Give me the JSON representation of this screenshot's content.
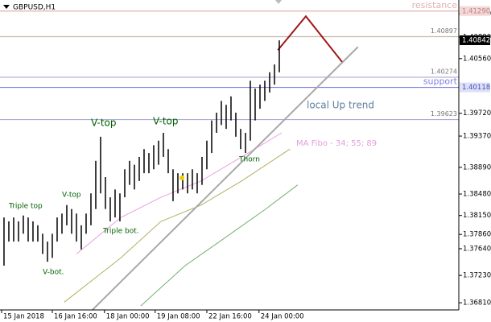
{
  "chart_data": {
    "type": "ohlc",
    "title": "GBPUSD,H1",
    "xlim": [
      -0.83,
      94.17
    ],
    "ylim": [
      1.367,
      1.4146
    ],
    "yticks": [
      {
        "value": 1.4125,
        "label": "1.41250"
      },
      {
        "value": 1.4089,
        "label": "1.40890"
      },
      {
        "value": 1.4056,
        "label": "1.40560"
      },
      {
        "value": 1.3972,
        "label": "1.39720"
      },
      {
        "value": 1.3937,
        "label": "1.39370"
      },
      {
        "value": 1.3889,
        "label": "1.38890"
      },
      {
        "value": 1.3848,
        "label": "1.38480"
      },
      {
        "value": 1.3815,
        "label": "1.38150"
      },
      {
        "value": 1.3786,
        "label": "1.37860"
      },
      {
        "value": 1.3764,
        "label": "1.37640"
      },
      {
        "value": 1.3723,
        "label": "1.37230"
      },
      {
        "value": 1.3681,
        "label": "1.36810"
      }
    ],
    "xticks": [
      {
        "value": -0.5,
        "label": "15 Jan 2018"
      },
      {
        "value": 10,
        "label": "16 Jan 16:00"
      },
      {
        "value": 20.8,
        "label": "18 Jan 00:00"
      },
      {
        "value": 31.3,
        "label": "19 Jan 08:00"
      },
      {
        "value": 42,
        "label": "22 Jan 16:00"
      },
      {
        "value": 52.8,
        "label": "24 Jan 00:00"
      }
    ],
    "bars": {
      "color": "#000000",
      "high": [
        1.3812,
        1.3806,
        1.3812,
        1.3806,
        1.3815,
        1.3812,
        1.3806,
        1.38,
        1.3787,
        1.3775,
        1.3787,
        1.3812,
        1.3818,
        1.3831,
        1.3825,
        1.3818,
        1.38,
        1.3818,
        1.3849,
        1.3899,
        1.3936,
        1.3874,
        1.3843,
        1.3855,
        1.3849,
        1.3886,
        1.3899,
        1.3893,
        1.3905,
        1.3917,
        1.3911,
        1.3923,
        1.393,
        1.3942,
        1.3917,
        1.3886,
        1.388,
        1.388,
        1.388,
        1.3886,
        1.388,
        1.3905,
        1.393,
        1.3961,
        1.3973,
        1.3991,
        1.3985,
        1.3998,
        1.3973,
        1.3948,
        1.3942,
        1.4022,
        1.401,
        1.4016,
        1.4022,
        1.4035,
        1.4047,
        1.4084
      ],
      "low": [
        1.3738,
        1.3775,
        1.3775,
        1.3775,
        1.3787,
        1.3775,
        1.3775,
        1.3775,
        1.3756,
        1.3744,
        1.375,
        1.3775,
        1.3787,
        1.38,
        1.3787,
        1.3775,
        1.3763,
        1.3787,
        1.38,
        1.3825,
        1.3849,
        1.3825,
        1.3806,
        1.3812,
        1.3806,
        1.3843,
        1.3862,
        1.3855,
        1.3868,
        1.388,
        1.388,
        1.3886,
        1.3893,
        1.3905,
        1.388,
        1.3837,
        1.3849,
        1.3855,
        1.3849,
        1.3855,
        1.3849,
        1.3862,
        1.3886,
        1.3911,
        1.3942,
        1.3954,
        1.3948,
        1.3961,
        1.3936,
        1.3917,
        1.3911,
        1.393,
        1.3961,
        1.3979,
        1.3991,
        1.4004,
        1.4016,
        1.4035
      ]
    },
    "overlays": [
      {
        "color": "#e8a0e0",
        "x": [
          15,
          24.2,
          32.5,
          40.8,
          49.2,
          57.5
        ],
        "values": [
          1.3756,
          1.3812,
          1.3843,
          1.3868,
          1.3905,
          1.3942
        ]
      },
      {
        "color": "#b0b060",
        "x": [
          12.5,
          24.2,
          32.5,
          40.8,
          49.2,
          59.2
        ],
        "values": [
          1.3682,
          1.375,
          1.3806,
          1.3831,
          1.3868,
          1.3917
        ]
      },
      {
        "color": "#70b070",
        "x": [
          28.3,
          37.5,
          45.8,
          54.2,
          60.8
        ],
        "values": [
          1.3676,
          1.3738,
          1.3781,
          1.3825,
          1.3862
        ]
      },
      {
        "color": "#a8a8a8",
        "x": [
          18.3,
          73.3
        ],
        "values": [
          1.367,
          1.4074
        ]
      },
      {
        "color": "#a01818",
        "x": [
          56.7,
          62.5,
          70
        ],
        "values": [
          1.4069,
          1.4121,
          1.4051
        ]
      }
    ],
    "levels": [
      {
        "value": 1.4129,
        "value_label": "1.41290",
        "name": "resistance",
        "color": "#e0b0b0"
      },
      {
        "value": 1.40897,
        "color": "#c8bca8"
      },
      {
        "value": 1.40274,
        "color": "#a8a8d0"
      },
      {
        "value": 1.40118,
        "name": "support",
        "color": "#8080e0"
      },
      {
        "value": 1.39623,
        "color": "#a8a8e0"
      }
    ],
    "last_price": 1.40842,
    "annotations": [
      "Triple top",
      "V-top",
      "V-bot.",
      "Triple bot.",
      "V-top",
      "V-top",
      "Thorn",
      "local  Up trend",
      "MA Fibo - 34; 55; 89"
    ]
  }
}
